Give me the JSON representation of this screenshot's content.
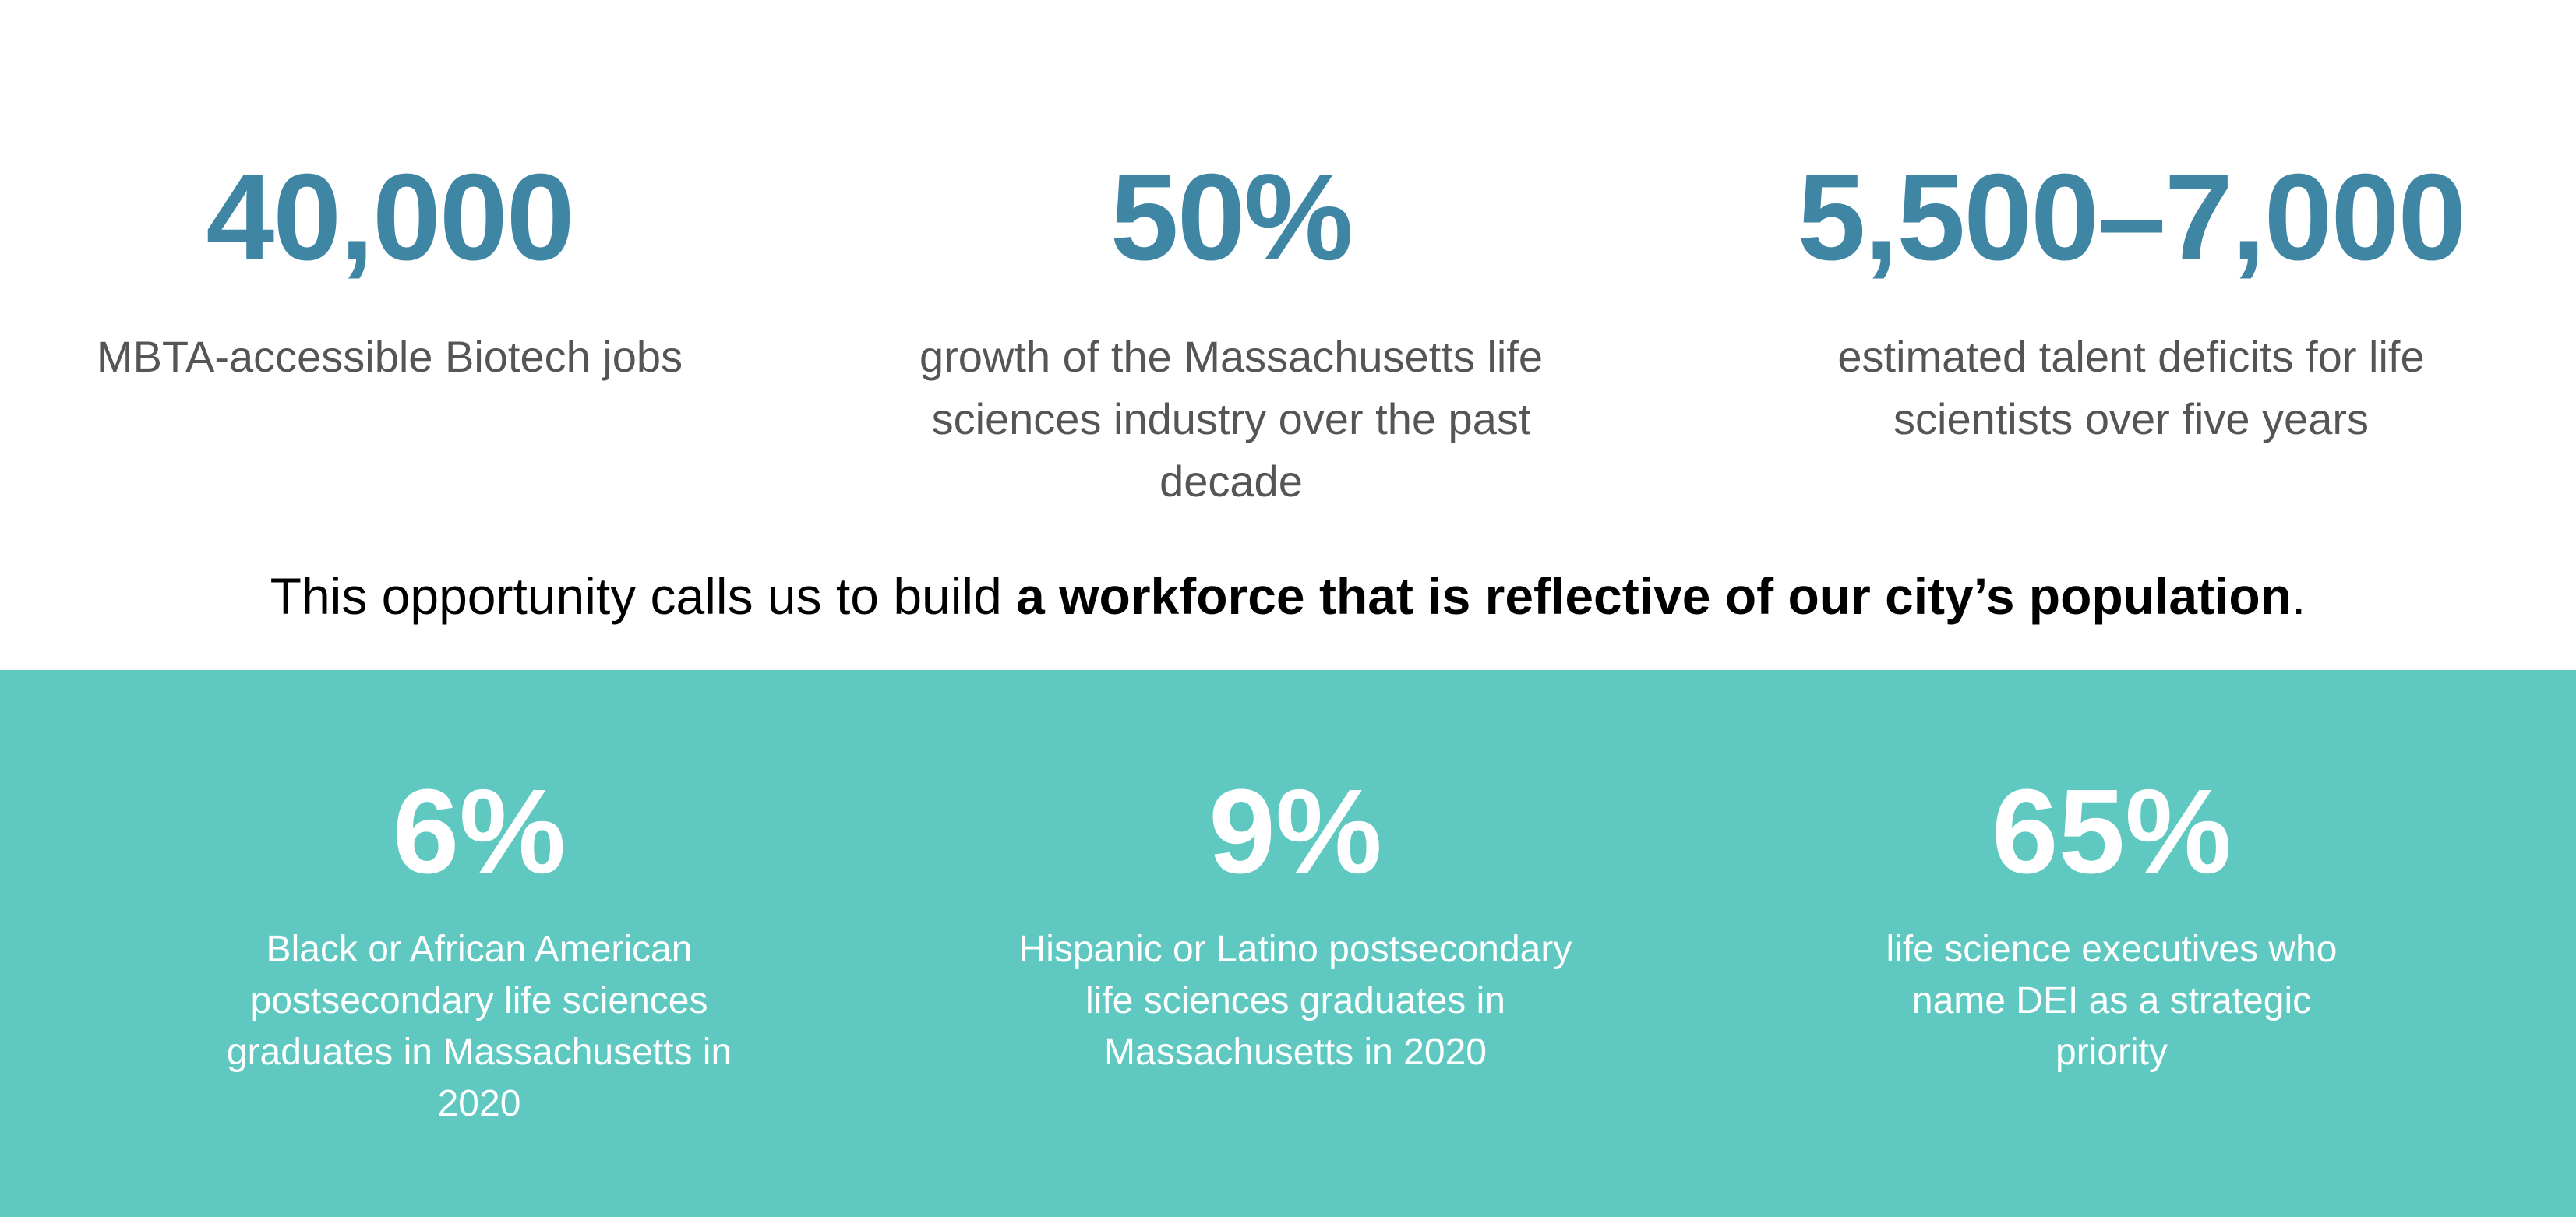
{
  "top_stats": [
    {
      "value": "40,000",
      "description": "MBTA-accessible Biotech jobs"
    },
    {
      "value": "50%",
      "description": "growth of the Massachusetts life sciences industry over the past decade"
    },
    {
      "value": "5,500–7,000",
      "description": "estimated talent deficits for life scientists over five years"
    }
  ],
  "banner": {
    "lead_text": "This opportunity calls us to build ",
    "bold_text": "a workforce that is reflective of our city’s population",
    "end_text": "."
  },
  "bottom_stats": [
    {
      "value": "6%",
      "description": "Black or African American postsecondary life sciences graduates in Massachusetts in 2020"
    },
    {
      "value": "9%",
      "description": "Hispanic or Latino postsecondary life sciences graduates in Massachusetts in 2020"
    },
    {
      "value": "65%",
      "description": "life science executives who name DEI as a strategic priority"
    }
  ],
  "colors": {
    "top_value": "#3e86a4",
    "top_description": "#555555",
    "bottom_background": "#5fc9c1",
    "bottom_text": "#ffffff"
  }
}
